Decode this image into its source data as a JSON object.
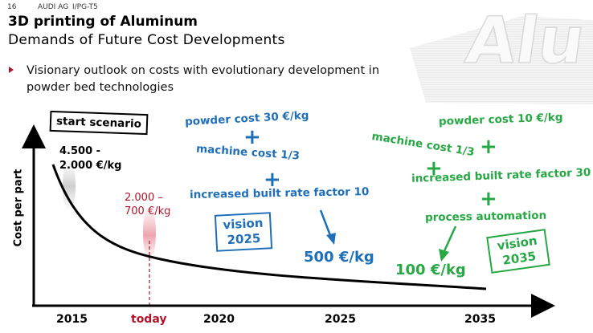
{
  "header": {
    "page_number": "16",
    "company": "AUDI AG",
    "department": "I/PG-T5"
  },
  "title": "3D printing of Aluminum",
  "subtitle": "Demands of Future Cost Developments",
  "bullet": "Visionary outlook on costs with evolutionary development in powder bed technologies",
  "watermark_text": "Alu",
  "colors": {
    "blue": "#1f6fb8",
    "green": "#27a844",
    "red": "#b0142a"
  },
  "chart_data": {
    "type": "line",
    "ylabel": "Cost per part",
    "xlabel": "",
    "x_ticks": [
      "2015",
      "today",
      "2020",
      "2025",
      "2035"
    ],
    "series": [
      {
        "values": [
          {
            "x": "2015",
            "y": "4.500 - 2.000 €/kg"
          },
          {
            "x": "today",
            "y": "2.000 – 700 €/kg"
          },
          {
            "x": "2025",
            "y": "500 €/kg"
          },
          {
            "x": "2035",
            "y": "100 €/kg"
          }
        ]
      }
    ],
    "annotations": {
      "start_scenario": "start scenario",
      "start_value": [
        "4.500 -",
        "2.000 €/kg"
      ],
      "today_value": [
        "2.000 –",
        "700 €/kg"
      ],
      "vision_2025": {
        "conditions": [
          "powder cost 30 €/kg",
          "machine cost 1/3",
          "increased built rate factor 10"
        ],
        "box": [
          "vision",
          "2025"
        ],
        "result": "500 €/kg"
      },
      "vision_2035": {
        "conditions": [
          "powder cost 10 €/kg",
          "machine cost 1/3",
          "increased built rate factor 30",
          "process automation"
        ],
        "box": [
          "vision",
          "2035"
        ],
        "result": "100 €/kg"
      },
      "plus_sign": "+"
    }
  }
}
